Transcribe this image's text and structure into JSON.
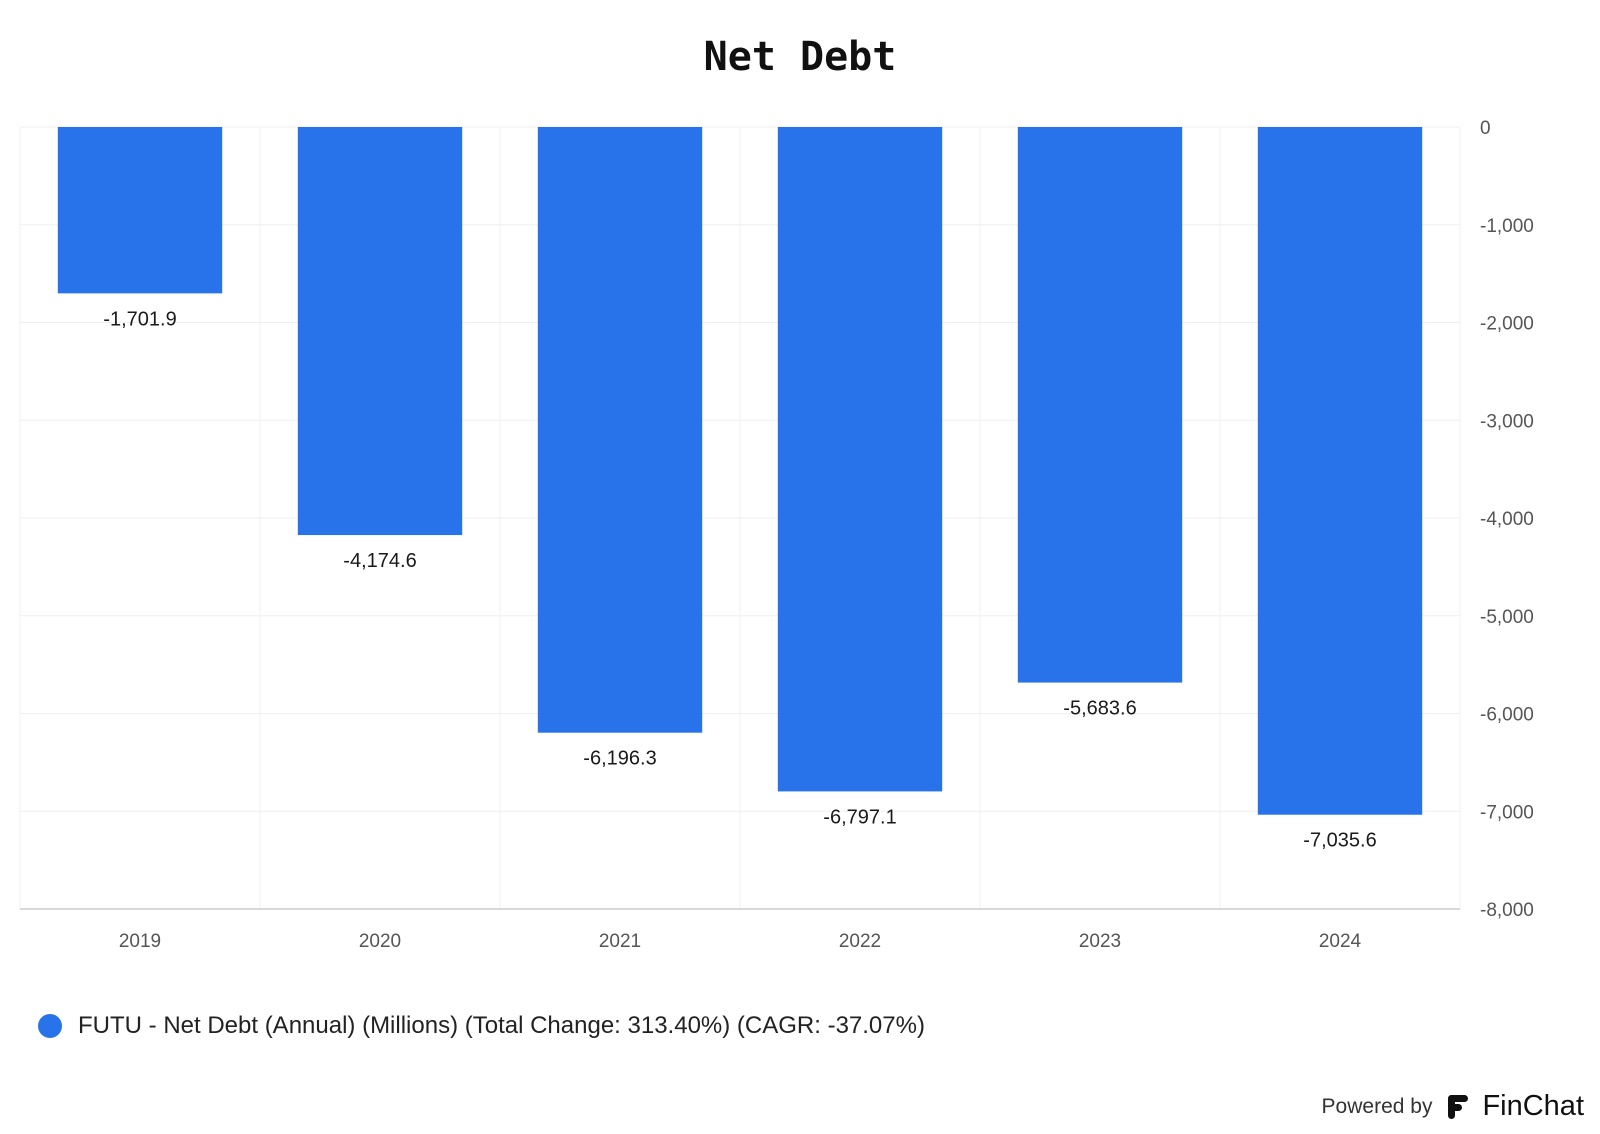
{
  "chart_data": {
    "type": "bar",
    "title": "Net Debt",
    "categories": [
      "2019",
      "2020",
      "2021",
      "2022",
      "2023",
      "2024"
    ],
    "series": [
      {
        "name": "FUTU - Net Debt (Annual) (Millions) (Total Change: 313.40%) (CAGR: -37.07%)",
        "color": "#2873EA",
        "values": [
          -1701.9,
          -4174.6,
          -6196.3,
          -6797.1,
          -5683.6,
          -7035.6
        ],
        "value_labels": [
          "-1,701.9",
          "-4,174.6",
          "-6,196.3",
          "-6,797.1",
          "-5,683.6",
          "-7,035.6"
        ]
      }
    ],
    "ylim": [
      -8000,
      0
    ],
    "yticks": [
      0,
      -1000,
      -2000,
      -3000,
      -4000,
      -5000,
      -6000,
      -7000,
      -8000
    ],
    "ytick_labels": [
      "0",
      "-1,000",
      "-2,000",
      "-3,000",
      "-4,000",
      "-5,000",
      "-6,000",
      "-7,000",
      "-8,000"
    ],
    "y_axis_side": "right",
    "grid": true,
    "legend_position": "bottom-left"
  },
  "branding": {
    "powered_by": "Powered by",
    "brand": "FinChat",
    "logo_icon": "finchat-logo-icon"
  }
}
